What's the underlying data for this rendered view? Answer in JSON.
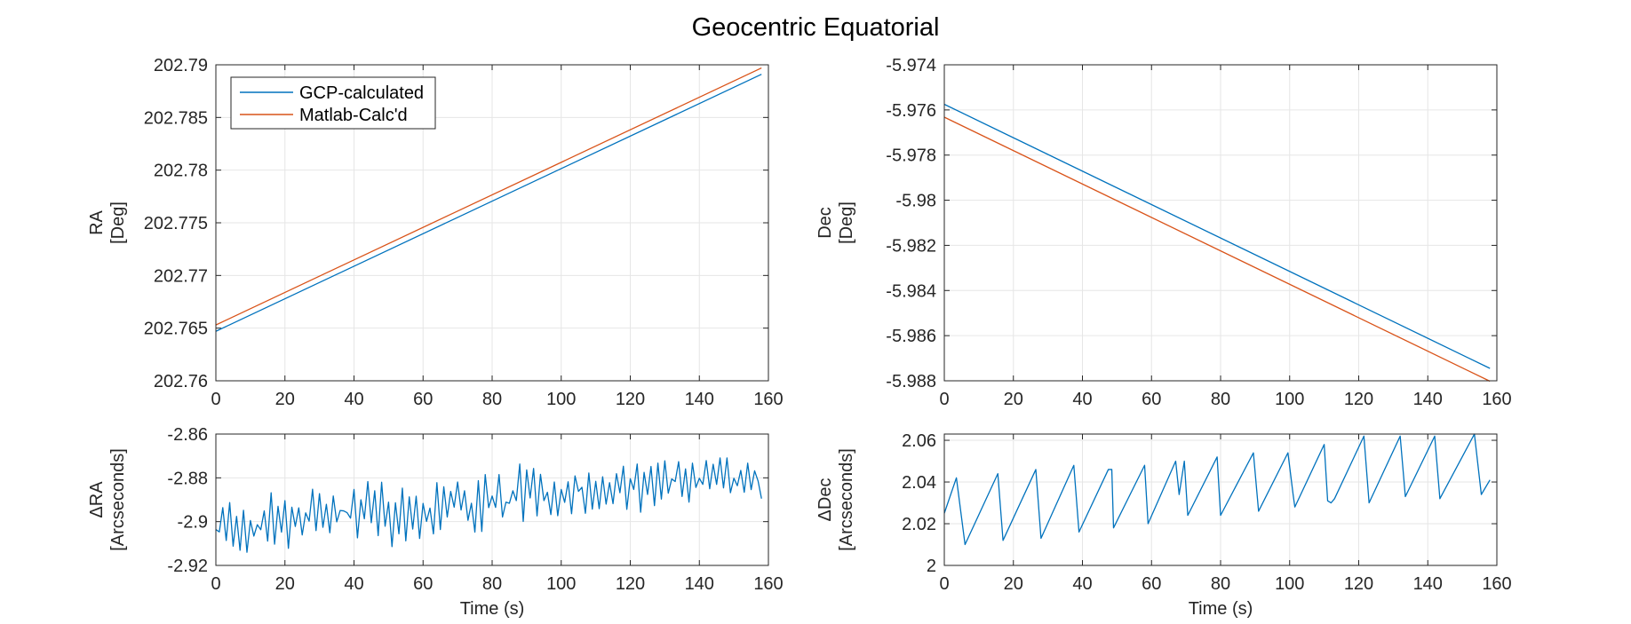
{
  "figure": {
    "title": "Geocentric Equatorial"
  },
  "chart_data": [
    {
      "id": "ra",
      "type": "line",
      "title": "",
      "xlabel": "",
      "ylabel": [
        "RA",
        "[Deg]"
      ],
      "xlim": [
        0,
        160
      ],
      "ylim": [
        202.76,
        202.79
      ],
      "xticks": [
        "0",
        "20",
        "40",
        "60",
        "80",
        "100",
        "120",
        "140",
        "160"
      ],
      "yticks": [
        "202.76",
        "202.765",
        "202.77",
        "202.775",
        "202.78",
        "202.785",
        "202.79"
      ],
      "grid": true,
      "legend": {
        "placement": "top-left"
      },
      "series": [
        {
          "name": "GCP-calculated",
          "color": "#0072BD",
          "x": [
            0,
            158
          ],
          "y": [
            202.7647,
            202.7891
          ]
        },
        {
          "name": "Matlab-Calc'd",
          "color": "#D95319",
          "x": [
            0,
            158
          ],
          "y": [
            202.7653,
            202.7897
          ]
        }
      ]
    },
    {
      "id": "dec",
      "type": "line",
      "title": "",
      "xlabel": "",
      "ylabel": [
        "Dec",
        "[Deg]"
      ],
      "xlim": [
        0,
        160
      ],
      "ylim": [
        -5.988,
        -5.974
      ],
      "xticks": [
        "0",
        "20",
        "40",
        "60",
        "80",
        "100",
        "120",
        "140",
        "160"
      ],
      "yticks": [
        "-5.988",
        "-5.986",
        "-5.984",
        "-5.982",
        "-5.98",
        "-5.978",
        "-5.976",
        "-5.974"
      ],
      "grid": true,
      "series": [
        {
          "color": "#0072BD",
          "x": [
            0,
            158
          ],
          "y": [
            -5.97575,
            -5.98745
          ]
        },
        {
          "color": "#D95319",
          "x": [
            0,
            158
          ],
          "y": [
            -5.97632,
            -5.98802
          ]
        }
      ]
    },
    {
      "id": "dra",
      "type": "line",
      "title": "",
      "xlabel": "Time (s)",
      "ylabel": [
        "ΔRA",
        "[Arcseconds]"
      ],
      "xlim": [
        0,
        160
      ],
      "ylim": [
        -2.92,
        -2.86
      ],
      "xticks": [
        "0",
        "20",
        "40",
        "60",
        "80",
        "100",
        "120",
        "140",
        "160"
      ],
      "yticks": [
        "-2.92",
        "-2.9",
        "-2.88",
        "-2.86"
      ],
      "grid": true,
      "series": [
        {
          "color": "#0072BD",
          "x": [
            0,
            1,
            2,
            3,
            4,
            5,
            6,
            7,
            8,
            9,
            10,
            11,
            12,
            13,
            14,
            15,
            16,
            17,
            18,
            19,
            20,
            21,
            22,
            23,
            24,
            25,
            26,
            27,
            28,
            29,
            30,
            31,
            32,
            33,
            34,
            35,
            36,
            37,
            38,
            39,
            40,
            41,
            42,
            43,
            44,
            45,
            46,
            47,
            48,
            49,
            50,
            51,
            52,
            53,
            54,
            55,
            56,
            57,
            58,
            59,
            60,
            61,
            62,
            63,
            64,
            65,
            66,
            67,
            68,
            69,
            70,
            71,
            72,
            73,
            74,
            75,
            76,
            77,
            78,
            79,
            80,
            81,
            82,
            83,
            84,
            85,
            86,
            87,
            88,
            89,
            90,
            91,
            92,
            93,
            94,
            95,
            96,
            97,
            98,
            99,
            100,
            101,
            102,
            103,
            104,
            105,
            106,
            107,
            108,
            109,
            110,
            111,
            112,
            113,
            114,
            115,
            116,
            117,
            118,
            119,
            120,
            121,
            122,
            123,
            124,
            125,
            126,
            127,
            128,
            129,
            130,
            131,
            132,
            133,
            134,
            135,
            136,
            137,
            138,
            139,
            140,
            141,
            142,
            143,
            144,
            145,
            146,
            147,
            148,
            149,
            150,
            151,
            152,
            153,
            154,
            155,
            156,
            157,
            158
          ],
          "y": [
            -2.9036,
            -2.9047,
            -2.8936,
            -2.9086,
            -2.8913,
            -2.9112,
            -2.8976,
            -2.9131,
            -2.8948,
            -2.914,
            -2.8995,
            -2.9066,
            -2.9014,
            -2.9037,
            -2.8951,
            -2.9089,
            -2.8868,
            -2.9103,
            -2.893,
            -2.9048,
            -2.8904,
            -2.9122,
            -2.8934,
            -2.9022,
            -2.8937,
            -2.9061,
            -2.896,
            -2.8998,
            -2.8852,
            -2.9041,
            -2.8872,
            -2.9026,
            -2.8921,
            -2.9051,
            -2.8883,
            -2.9001,
            -2.8949,
            -2.8951,
            -2.8959,
            -2.8984,
            -2.8853,
            -2.9074,
            -2.89,
            -2.8987,
            -2.8817,
            -2.9005,
            -2.8859,
            -2.9064,
            -2.882,
            -2.9021,
            -2.8911,
            -2.9114,
            -2.8914,
            -2.9056,
            -2.8847,
            -2.9088,
            -2.8887,
            -2.9034,
            -2.8884,
            -2.9077,
            -2.8917,
            -2.8999,
            -2.8938,
            -2.9056,
            -2.8822,
            -2.9036,
            -2.8841,
            -2.8979,
            -2.8862,
            -2.8934,
            -2.8819,
            -2.8947,
            -2.8859,
            -2.8994,
            -2.8916,
            -2.9048,
            -2.8813,
            -2.9045,
            -2.8785,
            -2.8936,
            -2.8883,
            -2.8935,
            -2.8785,
            -2.8979,
            -2.8911,
            -2.8916,
            -2.8859,
            -2.8904,
            -2.8737,
            -2.8999,
            -2.8764,
            -2.8892,
            -2.8757,
            -2.8974,
            -2.8784,
            -2.8904,
            -2.8866,
            -2.8968,
            -2.8819,
            -2.8973,
            -2.8853,
            -2.8912,
            -2.8818,
            -2.8964,
            -2.8791,
            -2.8862,
            -2.8843,
            -2.8962,
            -2.8778,
            -2.8943,
            -2.8816,
            -2.8941,
            -2.8795,
            -2.892,
            -2.8822,
            -2.8918,
            -2.8781,
            -2.8868,
            -2.8747,
            -2.8944,
            -2.8804,
            -2.8853,
            -2.8737,
            -2.8957,
            -2.8775,
            -2.8876,
            -2.8748,
            -2.8927,
            -2.8733,
            -2.8897,
            -2.8722,
            -2.887,
            -2.8805,
            -2.8817,
            -2.8726,
            -2.8885,
            -2.8759,
            -2.8911,
            -2.8733,
            -2.8844,
            -2.8802,
            -2.883,
            -2.8721,
            -2.885,
            -2.8738,
            -2.883,
            -2.8709,
            -2.8846,
            -2.8709,
            -2.8868,
            -2.8802,
            -2.8836,
            -2.8766,
            -2.8866,
            -2.8733,
            -2.8854,
            -2.8768,
            -2.8814,
            -2.8895
          ]
        }
      ]
    },
    {
      "id": "ddec",
      "type": "line",
      "title": "",
      "xlabel": "Time (s)",
      "ylabel": [
        "ΔDec",
        "[Arcseconds]"
      ],
      "xlim": [
        0,
        160
      ],
      "ylim": [
        2,
        2.063
      ],
      "xticks": [
        "0",
        "20",
        "40",
        "60",
        "80",
        "100",
        "120",
        "140",
        "160"
      ],
      "yticks": [
        "2",
        "2.02",
        "2.04",
        "2.06"
      ],
      "grid": true,
      "series": [
        {
          "color": "#0072BD",
          "x": [
            0,
            3.5,
            6,
            15.5,
            17,
            26.5,
            28,
            37.5,
            39,
            47.5,
            48.5,
            49,
            58,
            59,
            67,
            68,
            69.5,
            70.5,
            79,
            80,
            89.5,
            91,
            99.5,
            101,
            101.5,
            110,
            111,
            112,
            113,
            121.5,
            123,
            132,
            133.5,
            142,
            143.5,
            153.5,
            155.5,
            158
          ],
          "y": [
            2.025,
            2.042,
            2.01,
            2.044,
            2.012,
            2.046,
            2.013,
            2.048,
            2.016,
            2.046,
            2.046,
            2.018,
            2.048,
            2.02,
            2.05,
            2.034,
            2.05,
            2.024,
            2.052,
            2.024,
            2.054,
            2.026,
            2.054,
            2.034,
            2.028,
            2.058,
            2.031,
            2.03,
            2.032,
            2.062,
            2.03,
            2.062,
            2.033,
            2.062,
            2.032,
            2.063,
            2.034,
            2.041
          ]
        }
      ]
    }
  ]
}
